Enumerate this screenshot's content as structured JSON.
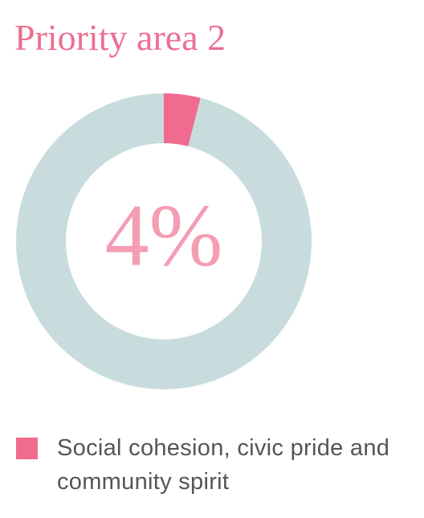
{
  "chart_data": {
    "type": "donut",
    "title": "Priority area 2",
    "categories": [
      "Social cohesion, civic pride and community spirit",
      null
    ],
    "values": [
      4,
      96
    ],
    "value_labels": [
      "4%",
      null
    ],
    "colors": [
      "#f06b8f",
      "#c9dcdd"
    ]
  }
}
